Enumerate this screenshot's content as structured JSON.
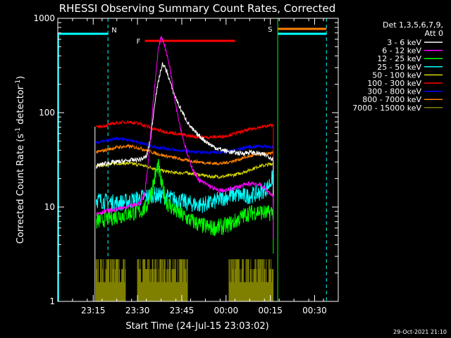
{
  "chart_data": {
    "type": "line",
    "title": "RHESSI Observing Summary Count Rates, Corrected",
    "xlabel": "Start Time (24-Jul-15 23:03:02)",
    "ylabel_main": "Corrected Count Rate (s",
    "ylabel_sup1": "-1",
    "ylabel_mid": " detector",
    "ylabel_sup2": "-1",
    "ylabel_end": ")",
    "xlim": [
      0,
      95
    ],
    "ylim": [
      1,
      1000
    ],
    "yscale": "log",
    "xticks": [
      {
        "t": 12,
        "label": "23:15"
      },
      {
        "t": 27,
        "label": "23:30"
      },
      {
        "t": 42,
        "label": "23:45"
      },
      {
        "t": 57,
        "label": "00:00"
      },
      {
        "t": 72,
        "label": "00:15"
      },
      {
        "t": 87,
        "label": "00:30"
      }
    ],
    "yticks": [
      {
        "v": 1,
        "label": "1"
      },
      {
        "v": 10,
        "label": "10"
      },
      {
        "v": 100,
        "label": "100"
      },
      {
        "v": 1000,
        "label": "1000"
      }
    ],
    "legend_header": [
      "Det 1,3,5,6,7,9,",
      "Att 0"
    ],
    "timestamp": "29-Oct-2021 21:10",
    "markers": {
      "night": {
        "label": "N",
        "segments": [
          [
            0,
            17
          ]
        ],
        "edges": [
          17,
          0
        ],
        "color": "#00ffff"
      },
      "saa": {
        "label": "S",
        "segments": [
          [
            74.5,
            91
          ]
        ],
        "edges": [
          91
        ],
        "color": "#00ffff"
      },
      "saa_flag": {
        "segment": [
          74.5,
          91
        ],
        "color": "#ff8000"
      },
      "flare": {
        "label": "F",
        "segment": [
          29.5,
          60
        ],
        "color": "#ff0000"
      },
      "green_edge": 74.5
    },
    "series": [
      {
        "name": "3 - 6 keV",
        "color": "#ffffff",
        "points": [
          [
            13,
            27
          ],
          [
            16,
            29
          ],
          [
            20,
            30
          ],
          [
            24,
            31
          ],
          [
            28,
            32
          ],
          [
            30,
            34
          ],
          [
            31.5,
            55
          ],
          [
            33,
            140
          ],
          [
            34.5,
            250
          ],
          [
            35.5,
            330
          ],
          [
            37,
            270
          ],
          [
            39,
            170
          ],
          [
            41,
            120
          ],
          [
            43,
            90
          ],
          [
            45,
            70
          ],
          [
            47,
            60
          ],
          [
            50,
            50
          ],
          [
            53,
            43
          ],
          [
            56,
            40
          ],
          [
            59,
            38
          ],
          [
            62,
            37
          ],
          [
            65,
            38
          ],
          [
            68,
            37
          ],
          [
            71,
            35
          ],
          [
            73,
            32
          ]
        ]
      },
      {
        "name": "6 - 12 keV",
        "color": "#ff00ff",
        "points": [
          [
            13,
            8.5
          ],
          [
            16,
            9
          ],
          [
            20,
            9.5
          ],
          [
            24,
            10
          ],
          [
            28,
            11
          ],
          [
            29.5,
            14
          ],
          [
            31,
            40
          ],
          [
            32.5,
            150
          ],
          [
            34,
            450
          ],
          [
            35,
            650
          ],
          [
            36,
            550
          ],
          [
            38,
            300
          ],
          [
            40,
            120
          ],
          [
            42,
            60
          ],
          [
            44,
            35
          ],
          [
            46,
            24
          ],
          [
            48,
            19
          ],
          [
            51,
            17
          ],
          [
            54,
            15
          ],
          [
            57,
            15
          ],
          [
            60,
            16
          ],
          [
            63,
            17
          ],
          [
            66,
            18
          ],
          [
            69,
            17
          ],
          [
            73,
            13
          ]
        ]
      },
      {
        "name": "12 - 25 keV",
        "color": "#00ff00",
        "points": [
          [
            13,
            7
          ],
          [
            16,
            7.5
          ],
          [
            20,
            8
          ],
          [
            24,
            8.5
          ],
          [
            28,
            9
          ],
          [
            30,
            10
          ],
          [
            32,
            16
          ],
          [
            34,
            28
          ],
          [
            35,
            18
          ],
          [
            37,
            11
          ],
          [
            40,
            9
          ],
          [
            44,
            7.5
          ],
          [
            48,
            6.5
          ],
          [
            52,
            6
          ],
          [
            56,
            6.2
          ],
          [
            60,
            7
          ],
          [
            64,
            8.5
          ],
          [
            68,
            9
          ],
          [
            71,
            8.5
          ],
          [
            73,
            9
          ]
        ]
      },
      {
        "name": "25 - 50 keV",
        "color": "#00ffff",
        "points": [
          [
            13,
            12
          ],
          [
            16,
            11.5
          ],
          [
            20,
            11
          ],
          [
            24,
            11.5
          ],
          [
            28,
            12.5
          ],
          [
            32,
            13.5
          ],
          [
            36,
            13
          ],
          [
            40,
            12
          ],
          [
            44,
            11
          ],
          [
            48,
            10.5
          ],
          [
            52,
            11
          ],
          [
            56,
            12.5
          ],
          [
            60,
            13.5
          ],
          [
            64,
            13
          ],
          [
            68,
            14
          ],
          [
            71,
            16
          ],
          [
            73,
            21
          ]
        ]
      },
      {
        "name": "50 - 100 keV",
        "color": "#d8d800",
        "points": [
          [
            13,
            27
          ],
          [
            16,
            28
          ],
          [
            20,
            29
          ],
          [
            24,
            29
          ],
          [
            28,
            28
          ],
          [
            32,
            26
          ],
          [
            36,
            24
          ],
          [
            40,
            23
          ],
          [
            44,
            23
          ],
          [
            48,
            22
          ],
          [
            52,
            21
          ],
          [
            56,
            21
          ],
          [
            60,
            22
          ],
          [
            64,
            24
          ],
          [
            68,
            27
          ],
          [
            71,
            28
          ],
          [
            73,
            29
          ]
        ]
      },
      {
        "name": "100 - 300 keV",
        "color": "#ff0000",
        "points": [
          [
            13,
            70
          ],
          [
            16,
            73
          ],
          [
            20,
            78
          ],
          [
            24,
            80
          ],
          [
            28,
            76
          ],
          [
            32,
            68
          ],
          [
            36,
            63
          ],
          [
            40,
            60
          ],
          [
            44,
            57
          ],
          [
            48,
            55
          ],
          [
            52,
            55
          ],
          [
            56,
            56
          ],
          [
            60,
            60
          ],
          [
            64,
            65
          ],
          [
            68,
            70
          ],
          [
            71,
            72
          ],
          [
            73,
            74
          ]
        ]
      },
      {
        "name": "300 - 800 keV",
        "color": "#0000ff",
        "points": [
          [
            13,
            48
          ],
          [
            16,
            50
          ],
          [
            20,
            53
          ],
          [
            24,
            52
          ],
          [
            28,
            48
          ],
          [
            32,
            44
          ],
          [
            36,
            42
          ],
          [
            40,
            40
          ],
          [
            44,
            39
          ],
          [
            48,
            38
          ],
          [
            52,
            38
          ],
          [
            56,
            38
          ],
          [
            60,
            40
          ],
          [
            64,
            43
          ],
          [
            68,
            44
          ],
          [
            71,
            44
          ],
          [
            73,
            43
          ]
        ]
      },
      {
        "name": "800 - 7000 keV",
        "color": "#ff8000",
        "points": [
          [
            13,
            38
          ],
          [
            16,
            40
          ],
          [
            20,
            43
          ],
          [
            24,
            44
          ],
          [
            28,
            42
          ],
          [
            32,
            38
          ],
          [
            36,
            35
          ],
          [
            40,
            33
          ],
          [
            44,
            31
          ],
          [
            48,
            30
          ],
          [
            52,
            29
          ],
          [
            56,
            29
          ],
          [
            60,
            31
          ],
          [
            64,
            34
          ],
          [
            68,
            36
          ],
          [
            71,
            37
          ],
          [
            73,
            37
          ]
        ]
      },
      {
        "name": "7000 - 15000 keV",
        "color": "#808000",
        "points": []
      }
    ],
    "olive_band": {
      "ranges": [
        [
          13,
          23
        ],
        [
          27,
          44
        ],
        [
          58,
          73
        ]
      ],
      "low": 1.0,
      "high": 2.8,
      "color": "#808000"
    }
  }
}
